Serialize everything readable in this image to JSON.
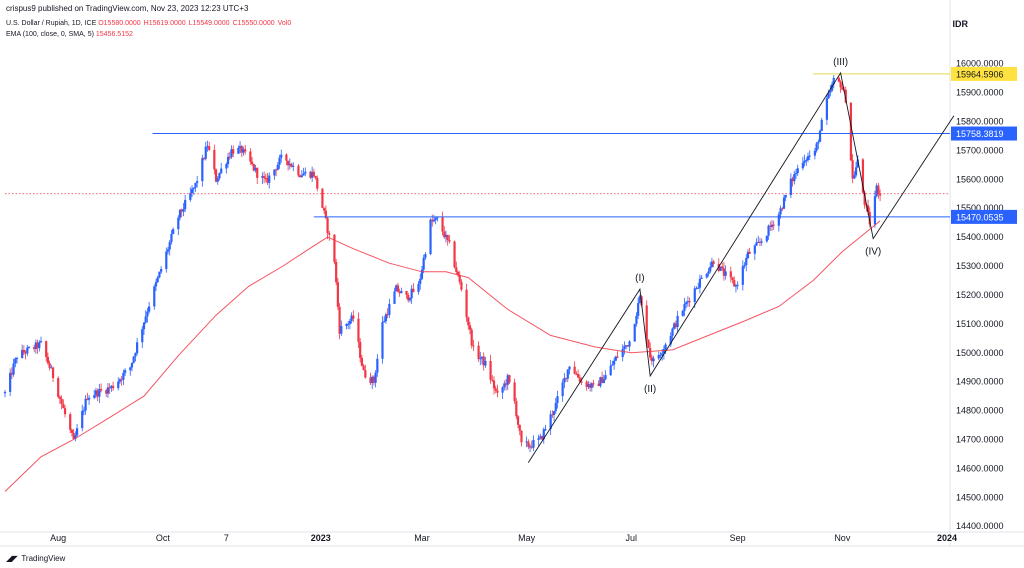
{
  "header": {
    "published": "crispus9 published on TradingView.com, Nov 23, 2023 12:23 UTC+3",
    "symbol": "U.S. Dollar / Rupiah, 1D, ICE",
    "ohlc": [
      "O15580.0000",
      "H15619.0000",
      "L15549.0000",
      "C15550.0000",
      "Vol0"
    ],
    "ema_label": "EMA (100, close, 0, SMA, 5)",
    "ema_value": "15456.5152",
    "currency": "IDR"
  },
  "footer": {
    "brand": "TradingView"
  },
  "colors": {
    "up": "#2962ff",
    "down": "#f23645",
    "ema": "#f23645",
    "hline": "#2962ff",
    "resistance": "#e8d84a",
    "price_line": "#f23645"
  },
  "chart_data": {
    "type": "candlestick",
    "y_axis": {
      "ylim": [
        14380,
        16075
      ],
      "ticks": [
        14400,
        14500,
        14600,
        14700,
        14800,
        14900,
        15000,
        15100,
        15200,
        15300,
        15400,
        15500,
        15600,
        15700,
        15800,
        15900,
        16000
      ],
      "tick_format": "0000"
    },
    "x_axis": {
      "start_date": "2022-07-01",
      "end_date": "2024-01-01",
      "labels": [
        {
          "text": "Aug",
          "date": "2022-08-01"
        },
        {
          "text": "Oct",
          "date": "2022-10-01"
        },
        {
          "text": "7",
          "date": "2022-11-07"
        },
        {
          "text": "2023",
          "date": "2023-01-01",
          "bold": true
        },
        {
          "text": "Mar",
          "date": "2023-03-01"
        },
        {
          "text": "May",
          "date": "2023-05-01"
        },
        {
          "text": "Jul",
          "date": "2023-07-01"
        },
        {
          "text": "Sep",
          "date": "2023-09-01"
        },
        {
          "text": "Nov",
          "date": "2023-11-01"
        },
        {
          "text": "2024",
          "date": "2024-01-01",
          "bold": true
        }
      ]
    },
    "price_keypoints": [
      [
        "2022-07-01",
        14860
      ],
      [
        "2022-07-08",
        14990
      ],
      [
        "2022-07-22",
        15030
      ],
      [
        "2022-07-29",
        14920
      ],
      [
        "2022-08-10",
        14690
      ],
      [
        "2022-08-18",
        14850
      ],
      [
        "2022-09-01",
        14880
      ],
      [
        "2022-09-12",
        14950
      ],
      [
        "2022-09-22",
        15150
      ],
      [
        "2022-09-30",
        15290
      ],
      [
        "2022-10-10",
        15470
      ],
      [
        "2022-10-20",
        15580
      ],
      [
        "2022-10-27",
        15720
      ],
      [
        "2022-11-01",
        15600
      ],
      [
        "2022-11-10",
        15700
      ],
      [
        "2022-11-16",
        15700
      ],
      [
        "2022-11-25",
        15620
      ],
      [
        "2022-11-30",
        15590
      ],
      [
        "2022-12-10",
        15680
      ],
      [
        "2022-12-20",
        15620
      ],
      [
        "2022-12-28",
        15620
      ],
      [
        "2023-01-03",
        15480
      ],
      [
        "2023-01-09",
        15320
      ],
      [
        "2023-01-12",
        15080
      ],
      [
        "2023-01-20",
        15120
      ],
      [
        "2023-01-26",
        14930
      ],
      [
        "2023-02-01",
        14900
      ],
      [
        "2023-02-06",
        15100
      ],
      [
        "2023-02-14",
        15220
      ],
      [
        "2023-02-20",
        15190
      ],
      [
        "2023-02-27",
        15230
      ],
      [
        "2023-03-06",
        15450
      ],
      [
        "2023-03-10",
        15460
      ],
      [
        "2023-03-17",
        15370
      ],
      [
        "2023-03-24",
        15220
      ],
      [
        "2023-03-31",
        15010
      ],
      [
        "2023-04-07",
        14960
      ],
      [
        "2023-04-14",
        14850
      ],
      [
        "2023-04-20",
        14910
      ],
      [
        "2023-04-24",
        14830
      ],
      [
        "2023-04-28",
        14680
      ],
      [
        "2023-05-03",
        14680
      ],
      [
        "2023-05-09",
        14700
      ],
      [
        "2023-05-18",
        14820
      ],
      [
        "2023-05-26",
        14960
      ],
      [
        "2023-06-02",
        14900
      ],
      [
        "2023-06-09",
        14880
      ],
      [
        "2023-06-16",
        14920
      ],
      [
        "2023-06-23",
        14990
      ],
      [
        "2023-06-30",
        15040
      ],
      [
        "2023-07-06",
        15190
      ],
      [
        "2023-07-12",
        14990
      ],
      [
        "2023-07-14",
        14970
      ],
      [
        "2023-07-20",
        15020
      ],
      [
        "2023-07-31",
        15150
      ],
      [
        "2023-08-08",
        15230
      ],
      [
        "2023-08-18",
        15320
      ],
      [
        "2023-08-23",
        15280
      ],
      [
        "2023-08-31",
        15230
      ],
      [
        "2023-09-07",
        15340
      ],
      [
        "2023-09-14",
        15380
      ],
      [
        "2023-09-25",
        15480
      ],
      [
        "2023-10-02",
        15590
      ],
      [
        "2023-10-09",
        15670
      ],
      [
        "2023-10-16",
        15690
      ],
      [
        "2023-10-23",
        15870
      ],
      [
        "2023-10-27",
        15940
      ],
      [
        "2023-10-31",
        15930
      ],
      [
        "2023-11-03",
        15880
      ],
      [
        "2023-11-07",
        15600
      ],
      [
        "2023-11-10",
        15660
      ],
      [
        "2023-11-14",
        15520
      ],
      [
        "2023-11-17",
        15450
      ],
      [
        "2023-11-21",
        15570
      ],
      [
        "2023-11-23",
        15550
      ]
    ],
    "ema100_keypoints": [
      [
        "2022-07-01",
        14520
      ],
      [
        "2022-07-22",
        14640
      ],
      [
        "2022-08-10",
        14700
      ],
      [
        "2022-09-01",
        14780
      ],
      [
        "2022-09-20",
        14850
      ],
      [
        "2022-10-10",
        14990
      ],
      [
        "2022-11-01",
        15130
      ],
      [
        "2022-11-20",
        15230
      ],
      [
        "2022-12-10",
        15300
      ],
      [
        "2022-12-28",
        15370
      ],
      [
        "2023-01-05",
        15400
      ],
      [
        "2023-01-20",
        15360
      ],
      [
        "2023-02-10",
        15310
      ],
      [
        "2023-03-01",
        15280
      ],
      [
        "2023-03-15",
        15280
      ],
      [
        "2023-03-28",
        15260
      ],
      [
        "2023-04-20",
        15150
      ],
      [
        "2023-05-15",
        15060
      ],
      [
        "2023-06-10",
        15020
      ],
      [
        "2023-07-01",
        15000
      ],
      [
        "2023-07-25",
        15010
      ],
      [
        "2023-08-15",
        15060
      ],
      [
        "2023-09-05",
        15110
      ],
      [
        "2023-09-25",
        15160
      ],
      [
        "2023-10-15",
        15250
      ],
      [
        "2023-11-01",
        15350
      ],
      [
        "2023-11-23",
        15456
      ]
    ],
    "horizontal_lines": [
      {
        "price": 15964.5906,
        "label": "15964.5906",
        "color": "#e8d84a",
        "start_date": "2023-10-15",
        "label_bg": "#ffe23f",
        "label_color": "#131722"
      },
      {
        "price": 15758.3819,
        "label": "15758.3819",
        "color": "#2962ff",
        "start_date": "2022-09-25",
        "label_bg": "#2962ff",
        "label_color": "#ffffff"
      },
      {
        "price": 15470.0535,
        "label": "15470.0535",
        "color": "#2962ff",
        "start_date": "2022-12-28",
        "label_bg": "#2962ff",
        "label_color": "#ffffff"
      }
    ],
    "current_price": {
      "price": 15550,
      "color": "#f23645"
    },
    "elliott_wave": {
      "points": [
        {
          "date": "2023-05-02",
          "price": 14620,
          "label": ""
        },
        {
          "date": "2023-07-06",
          "price": 15220,
          "label": "(I)"
        },
        {
          "date": "2023-07-12",
          "price": 14920,
          "label": "(II)"
        },
        {
          "date": "2023-10-31",
          "price": 15968,
          "label": "(III)"
        },
        {
          "date": "2023-11-19",
          "price": 15395,
          "label": "(IV)"
        },
        {
          "date": "2024-01-05",
          "price": 15820,
          "label": ""
        }
      ]
    }
  }
}
